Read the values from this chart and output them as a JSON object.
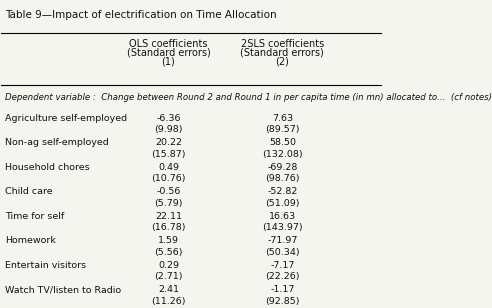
{
  "title": "Table 9—Impact of electrification on Time Allocation",
  "col_headers": [
    [
      "OLS coefficients",
      "(Standard errors)",
      "(1)"
    ],
    [
      "2SLS coefficients",
      "(Standard errors)",
      "(2)"
    ]
  ],
  "dep_var_note": "Dependent variable :  Change between Round 2 and Round 1 in per capita time (in mn) allocated to...  (cf notes)",
  "rows": [
    {
      "label": "Agriculture self-employed",
      "col1_coef": "-6.36",
      "col1_se": "(9.98)",
      "col2_coef": "7.63",
      "col2_se": "(89.57)"
    },
    {
      "label": "Non-ag self-employed",
      "col1_coef": "20.22",
      "col1_se": "(15.87)",
      "col2_coef": "58.50",
      "col2_se": "(132.08)"
    },
    {
      "label": "Household chores",
      "col1_coef": "0.49",
      "col1_se": "(10.76)",
      "col2_coef": "-69.28",
      "col2_se": "(98.76)"
    },
    {
      "label": "Child care",
      "col1_coef": "-0.56",
      "col1_se": "(5.79)",
      "col2_coef": "-52.82",
      "col2_se": "(51.09)"
    },
    {
      "label": "Time for self",
      "col1_coef": "22.11",
      "col1_se": "(16.78)",
      "col2_coef": "16.63",
      "col2_se": "(143.97)"
    },
    {
      "label": "Homework",
      "col1_coef": "1.59",
      "col1_se": "(5.56)",
      "col2_coef": "-71.97",
      "col2_se": "(50.34)"
    },
    {
      "label": "Entertain visitors",
      "col1_coef": "0.29",
      "col1_se": "(2.71)",
      "col2_coef": "-7.17",
      "col2_se": "(22.26)"
    },
    {
      "label": "Watch TV/listen to Radio",
      "col1_coef": "2.41",
      "col1_se": "(11.26)",
      "col2_coef": "-1.17",
      "col2_se": "(92.85)"
    }
  ],
  "bg_color": "#f5f5f0",
  "text_color": "#111111",
  "title_fontsize": 7.5,
  "header_fontsize": 7.0,
  "note_fontsize": 6.2,
  "data_fontsize": 6.8,
  "label_fontsize": 6.8
}
